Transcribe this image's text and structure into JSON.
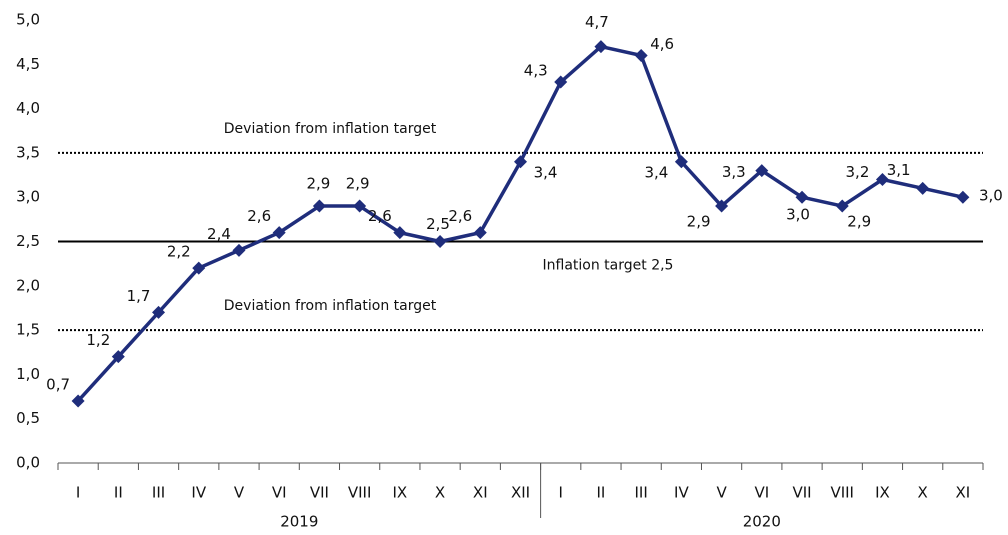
{
  "chart_data": {
    "type": "line",
    "categories": [
      "I",
      "II",
      "III",
      "IV",
      "V",
      "VI",
      "VII",
      "VIII",
      "IX",
      "X",
      "XI",
      "XII",
      "I",
      "II",
      "III",
      "IV",
      "V",
      "VI",
      "VII",
      "VIII",
      "IX",
      "X",
      "XI"
    ],
    "groups": [
      "2019",
      "2020"
    ],
    "series": [
      {
        "color": "#1f2d7b",
        "values": [
          0.7,
          1.2,
          1.7,
          2.2,
          2.4,
          2.6,
          2.9,
          2.9,
          2.6,
          2.5,
          2.6,
          3.4,
          4.3,
          4.7,
          4.6,
          3.4,
          2.9,
          3.3,
          3.0,
          2.9,
          3.2,
          3.1,
          3.0
        ],
        "value_labels": [
          "0,7",
          "1,2",
          "1,7",
          "2,2",
          "2,4",
          "2,6",
          "2,9",
          "2,9",
          "2,6",
          "2,5",
          "2,6",
          "3,4",
          "4,3",
          "4,7",
          "4,6",
          "3,4",
          "2,9",
          "3,3",
          "3,0",
          "2,9",
          "3,2",
          "3,1",
          "3,0"
        ]
      }
    ],
    "ylim": [
      0,
      5
    ],
    "yticks": [
      {
        "value": 0,
        "label": "0,0"
      },
      {
        "value": 0.5,
        "label": "0,5"
      },
      {
        "value": 1,
        "label": "1,0"
      },
      {
        "value": 1.5,
        "label": "1,5"
      },
      {
        "value": 2,
        "label": "2,0"
      },
      {
        "value": 2.5,
        "label": "2,5"
      },
      {
        "value": 3,
        "label": "3,0"
      },
      {
        "value": 3.5,
        "label": "3,5"
      },
      {
        "value": 4,
        "label": "4,0"
      },
      {
        "value": 4.5,
        "label": "4,5"
      },
      {
        "value": 5,
        "label": "5,0"
      }
    ],
    "reference_lines": [
      {
        "value": 3.5,
        "label": "Deviation from inflation target",
        "style": "dotted"
      },
      {
        "value": 2.5,
        "label": "Inflation target 2,5",
        "style": "solid"
      },
      {
        "value": 1.5,
        "label": "Deviation from inflation target",
        "style": "dotted"
      }
    ]
  }
}
